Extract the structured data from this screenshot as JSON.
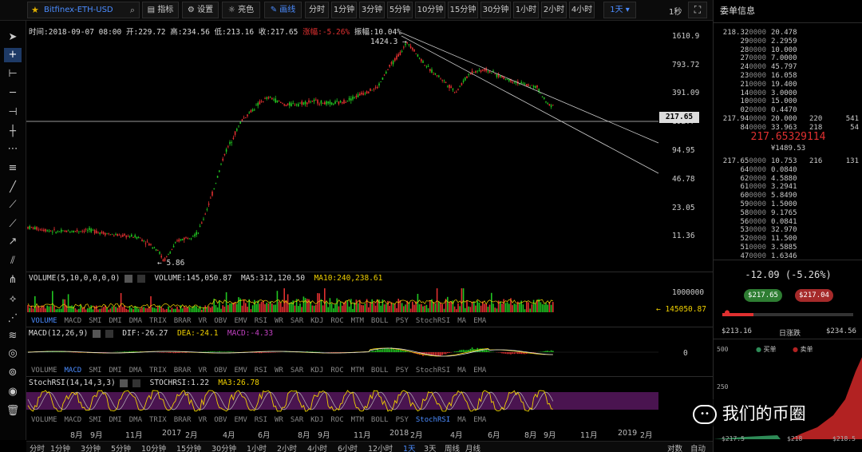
{
  "symbol": "Bitfinex-ETH-USD",
  "toolbar": {
    "indicators": "指标",
    "settings": "设置",
    "brightness": "亮色",
    "draw": "画线",
    "intervals": [
      "分时",
      "1分钟",
      "3分钟",
      "5分钟",
      "10分钟",
      "15分钟",
      "30分钟",
      "1小时",
      "2小时",
      "4小时"
    ],
    "selected_interval": "1天",
    "refresh": "1秒"
  },
  "info_bar": {
    "time": "时间:2018-09-07 08:00",
    "open": "开:229.72",
    "high": "高:234.56",
    "low": "低:213.16",
    "close": "收:217.65",
    "change": "涨幅:-5.26%",
    "amplitude": "振幅:10.04%"
  },
  "price_chart": {
    "axis_labels": [
      "1610.9",
      "793.72",
      "391.09",
      "192.7",
      "94.95",
      "46.78",
      "23.05",
      "11.36"
    ],
    "current_price": "217.65",
    "high_marker": "1424.3",
    "low_marker": "5.86"
  },
  "volume_panel": {
    "header": "VOLUME(5,10,0,0,0,0)",
    "volume": "VOLUME:145,050.87",
    "ma5": "MA5:312,120.50",
    "ma10": "MA10:240,238.61",
    "axis_top": "1000000",
    "axis_current": "145050.87"
  },
  "macd_panel": {
    "header": "MACD(12,26,9)",
    "dif": "DIF:-26.27",
    "dea": "DEA:-24.1",
    "macd": "MACD:-4.33",
    "axis_zero": "0"
  },
  "stochrsi_panel": {
    "header": "StochRSI(14,14,3,3)",
    "stochrsi": "STOCHRSI:1.22",
    "ma3": "MA3:26.78"
  },
  "indicator_tabs": [
    "VOLUME",
    "MACD",
    "SMI",
    "DMI",
    "DMA",
    "TRIX",
    "BRAR",
    "VR",
    "OBV",
    "EMV",
    "RSI",
    "WR",
    "SAR",
    "KDJ",
    "ROC",
    "MTM",
    "BOLL",
    "PSY",
    "StochRSI",
    "MA",
    "EMA"
  ],
  "time_axis": [
    "8月",
    "9月",
    "11月",
    "2017",
    "2月",
    "4月",
    "6月",
    "8月",
    "9月",
    "11月",
    "2018",
    "2月",
    "4月",
    "6月",
    "8月",
    "9月",
    "11月",
    "2019",
    "2月"
  ],
  "bottom_bar": {
    "intervals": [
      "分时",
      "1分钟",
      "3分钟",
      "5分钟",
      "10分钟",
      "15分钟",
      "30分钟",
      "1小时",
      "2小时",
      "4小时",
      "6小时",
      "12小时",
      "1天",
      "3天",
      "周线",
      "月线"
    ],
    "selected": "1天",
    "log": "对数",
    "auto": "自动"
  },
  "order_book": {
    "title": "委单信息",
    "asks": [
      {
        "price": "218.32",
        "suffix": "0000",
        "qty": "20.478",
        "total": "",
        "count": ""
      },
      {
        "price": "29",
        "suffix": "0000",
        "qty": "2.2959",
        "total": "",
        "count": ""
      },
      {
        "price": "28",
        "suffix": "0000",
        "qty": "10.000",
        "total": "",
        "count": ""
      },
      {
        "price": "27",
        "suffix": "0000",
        "qty": "7.0000",
        "total": "",
        "count": ""
      },
      {
        "price": "24",
        "suffix": "0000",
        "qty": "45.797",
        "total": "",
        "count": ""
      },
      {
        "price": "23",
        "suffix": "0000",
        "qty": "16.058",
        "total": "",
        "count": ""
      },
      {
        "price": "21",
        "suffix": "0000",
        "qty": "19.400",
        "total": "",
        "count": ""
      },
      {
        "price": "14",
        "suffix": "0000",
        "qty": "3.0000",
        "total": "",
        "count": ""
      },
      {
        "price": "10",
        "suffix": "0000",
        "qty": "15.000",
        "total": "",
        "count": ""
      },
      {
        "price": "02",
        "suffix": "0000",
        "qty": "0.4470",
        "total": "",
        "count": ""
      },
      {
        "price": "217.94",
        "suffix": "0000",
        "qty": "20.000",
        "total": "220",
        "count": "541"
      },
      {
        "price": "84",
        "suffix": "0000",
        "qty": "33.963",
        "total": "218",
        "count": "54"
      }
    ],
    "last_price": "217.65329114",
    "last_price_cny": "¥1489.53",
    "bids": [
      {
        "price": "217.65",
        "suffix": "0000",
        "qty": "10.753",
        "total": "216",
        "count": "131"
      },
      {
        "price": "64",
        "suffix": "0000",
        "qty": "0.0840",
        "total": "",
        "count": ""
      },
      {
        "price": "62",
        "suffix": "0000",
        "qty": "4.5880",
        "total": "",
        "count": ""
      },
      {
        "price": "61",
        "suffix": "0000",
        "qty": "3.2941",
        "total": "",
        "count": ""
      },
      {
        "price": "60",
        "suffix": "0000",
        "qty": "5.8490",
        "total": "",
        "count": ""
      },
      {
        "price": "59",
        "suffix": "0000",
        "qty": "1.5000",
        "total": "",
        "count": ""
      },
      {
        "price": "58",
        "suffix": "0000",
        "qty": "9.1765",
        "total": "",
        "count": ""
      },
      {
        "price": "56",
        "suffix": "0000",
        "qty": "0.0841",
        "total": "",
        "count": ""
      },
      {
        "price": "53",
        "suffix": "0000",
        "qty": "32.970",
        "total": "",
        "count": ""
      },
      {
        "price": "52",
        "suffix": "0000",
        "qty": "11.500",
        "total": "",
        "count": ""
      },
      {
        "price": "51",
        "suffix": "0000",
        "qty": "3.5885",
        "total": "",
        "count": ""
      },
      {
        "price": "47",
        "suffix": "0000",
        "qty": "1.6346",
        "total": "",
        "count": ""
      }
    ],
    "daily_change": "-12.09 (-5.26%)",
    "buy_price": "$217.65",
    "sell_price": "$217.04",
    "day_low": "$213.16",
    "day_range_label": "日涨跌",
    "day_high": "$234.56",
    "depth_legend_buy": "买单",
    "depth_legend_sell": "卖单",
    "depth_y": [
      "500",
      "250"
    ],
    "depth_x": [
      "$217.5",
      "$218",
      "$218.5"
    ]
  },
  "watermark": "我们的币圈",
  "colors": {
    "up": "#21c521",
    "down": "#e03030",
    "accent": "#4b8cff",
    "yellow": "#f0d000",
    "buy": "#2e8b57",
    "sell": "#b22222"
  }
}
